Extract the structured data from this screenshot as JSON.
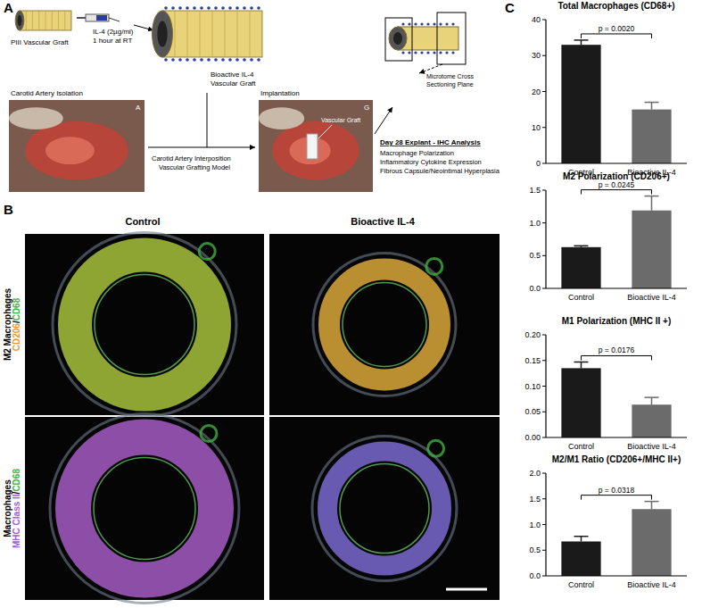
{
  "chart_data": [
    {
      "type": "bar",
      "title": "Total Macrophages (CD68+)",
      "categories": [
        "Control",
        "Bioactive IL-4"
      ],
      "values": [
        33,
        15
      ],
      "errors": [
        1.3,
        2.0
      ],
      "colors": [
        "#1a1a1a",
        "#6b6b6b"
      ],
      "ylim": [
        0,
        40
      ],
      "yticks": [
        0,
        10,
        20,
        30,
        40
      ],
      "annotation": "p = 0.0020"
    },
    {
      "type": "bar",
      "title": "M2 Polarization (CD206+)",
      "categories": [
        "Control",
        "Bioactive IL-4"
      ],
      "values": [
        0.63,
        1.19
      ],
      "errors": [
        0.02,
        0.22
      ],
      "colors": [
        "#1a1a1a",
        "#6b6b6b"
      ],
      "ylim": [
        0,
        1.5
      ],
      "yticks": [
        {
          "value": 0,
          "label": "0.0"
        },
        0.5,
        {
          "value": 1,
          "label": "1.0"
        },
        1.5
      ],
      "annotation": "p = 0.0245"
    },
    {
      "type": "bar",
      "title": "M1 Polarization (MHC II +)",
      "categories": [
        "Control",
        "Bioactive IL-4"
      ],
      "values": [
        0.135,
        0.064
      ],
      "errors": [
        0.012,
        0.014
      ],
      "colors": [
        "#1a1a1a",
        "#6b6b6b"
      ],
      "ylim": [
        0,
        0.2
      ],
      "yticks": [
        {
          "value": 0,
          "label": "0.00"
        },
        {
          "value": 0.05,
          "label": "0.05"
        },
        {
          "value": 0.1,
          "label": "0.10"
        },
        {
          "value": 0.15,
          "label": "0.15"
        },
        {
          "value": 0.2,
          "label": "0.20"
        }
      ],
      "annotation": "p = 0.0176"
    },
    {
      "type": "bar",
      "title": "M2/M1 Ratio (CD206+/MHC II+)",
      "categories": [
        "Control",
        "Bioactive IL-4"
      ],
      "values": [
        0.67,
        1.3
      ],
      "errors": [
        0.1,
        0.15
      ],
      "colors": [
        "#1a1a1a",
        "#6b6b6b"
      ],
      "ylim": [
        0,
        2
      ],
      "yticks": [
        {
          "value": 0,
          "label": "0.0"
        },
        0.5,
        {
          "value": 1,
          "label": "1.0"
        },
        1.5,
        {
          "value": 2,
          "label": "2.0"
        }
      ],
      "annotation": "p = 0.0318"
    }
  ],
  "panels": [
    "A",
    "B",
    "C"
  ],
  "diagram": {
    "graft": "PIII Vascular Graft",
    "coating": [
      "IL-4 (2µg/ml)",
      "1 hour at RT"
    ],
    "coated_graft": [
      "Bioactive IL-4",
      "Vascular Graft"
    ],
    "isolation": "Carotid Artery Isolation",
    "model": [
      "Carotid Artery Interposition",
      "Vascular Grafting Model"
    ],
    "implantation": "Implantation",
    "graft_label": "Vascular Graft",
    "photo_marks": [
      "A",
      "G"
    ],
    "sectioning": [
      "Microtome Cross",
      "Sectioning Plane"
    ],
    "analysis_title": "Day 28 Explant - IHC Analysis",
    "analysis_items": [
      "Macrophage Polarization",
      "Inflammatory Cytokine Expression",
      "Fibrous Capsule/Neointimal Hyperplasia"
    ]
  },
  "images": {
    "columns": [
      "Control",
      "Bioactive IL-4"
    ],
    "rows": [
      {
        "title": "M2 Macrophages",
        "markers": [
          {
            "text": "CD206",
            "color": "#e8962e"
          },
          {
            "text": "/",
            "color": "#000000"
          },
          {
            "text": "CD68",
            "color": "#3fae3f"
          }
        ]
      },
      {
        "title": "Macrophages",
        "markers": [
          {
            "text": "MHC Class II",
            "color": "#a05cc8"
          },
          {
            "text": "/",
            "color": "#000000"
          },
          {
            "text": "CD68",
            "color": "#3fae3f"
          }
        ]
      }
    ]
  }
}
